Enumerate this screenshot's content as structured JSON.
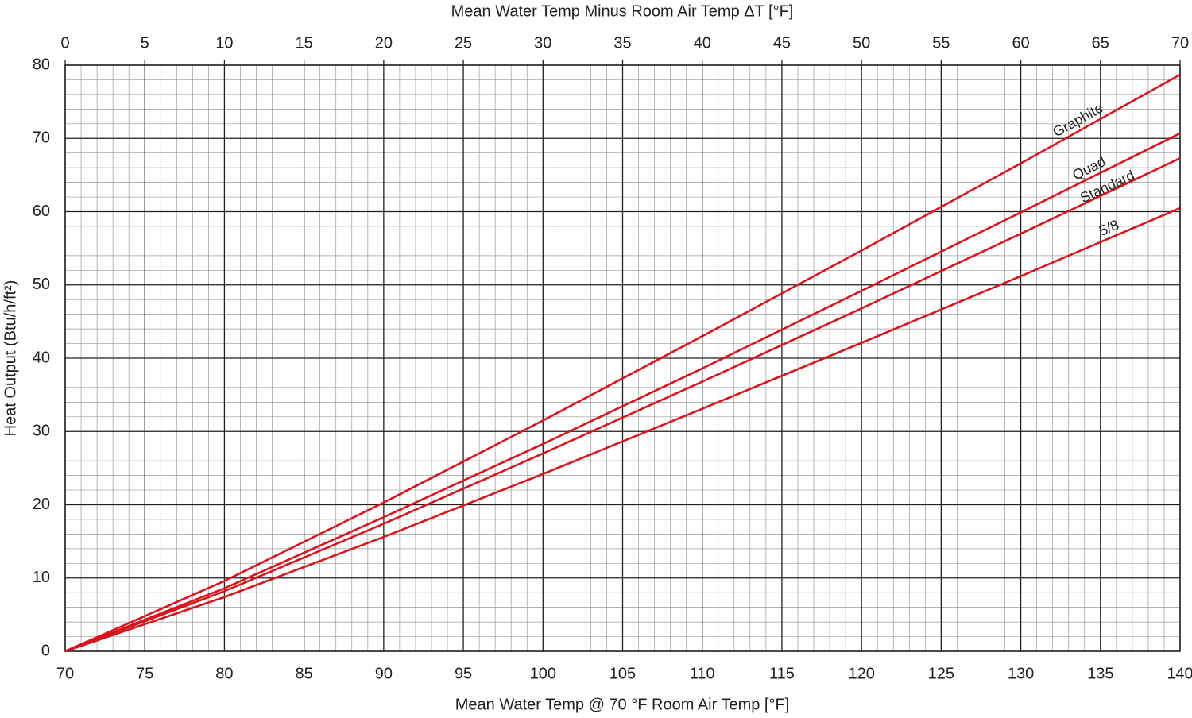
{
  "chart_data": {
    "type": "line",
    "xlabel": "Mean Water Temp @ 70 °F Room Air Temp [°F]",
    "x2label": "Mean Water Temp Minus Room Air Temp  ΔT [°F]",
    "ylabel": "Heat Output (Btu/h/ft²)",
    "x": [
      70,
      80,
      90,
      100,
      110,
      120,
      130,
      140
    ],
    "series": [
      {
        "name": "Graphite",
        "color": "#d7141e",
        "values": [
          0,
          9.6,
          20.3,
          31.5,
          43.0,
          54.7,
          66.6,
          78.7
        ]
      },
      {
        "name": "Quad",
        "color": "#d7141e",
        "values": [
          0,
          8.6,
          18.3,
          28.3,
          38.6,
          49.2,
          59.9,
          70.7
        ]
      },
      {
        "name": "Standard",
        "color": "#d7141e",
        "values": [
          0,
          8.2,
          17.4,
          27.0,
          36.8,
          46.8,
          57.0,
          67.3
        ]
      },
      {
        "name": "5/8",
        "color": "#d7141e",
        "values": [
          0,
          7.4,
          15.6,
          24.2,
          33.1,
          42.1,
          51.2,
          60.5
        ]
      }
    ],
    "xlim": [
      70,
      140
    ],
    "xticks": [
      70,
      75,
      80,
      85,
      90,
      95,
      100,
      105,
      110,
      115,
      120,
      125,
      130,
      135,
      140
    ],
    "x2lim": [
      0,
      70
    ],
    "x2ticks": [
      0,
      5,
      10,
      15,
      20,
      25,
      30,
      35,
      40,
      45,
      50,
      55,
      60,
      65,
      70
    ],
    "ylim": [
      0,
      80
    ],
    "yticks": [
      0,
      10,
      20,
      30,
      40,
      50,
      60,
      70,
      80
    ],
    "grid": true
  }
}
